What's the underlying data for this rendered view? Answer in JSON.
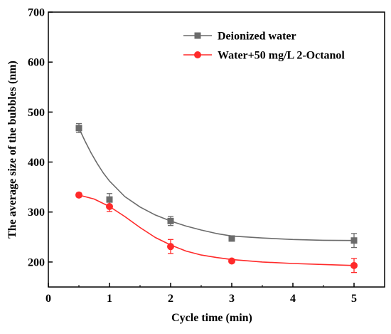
{
  "chart_data": {
    "type": "line",
    "xlabel": "Cycle time (min)",
    "ylabel": "The average size of the bubbles (nm)",
    "xlim": [
      0,
      5.5
    ],
    "ylim": [
      150,
      700
    ],
    "xticks": [
      0,
      1,
      2,
      3,
      4,
      5
    ],
    "yticks": [
      200,
      300,
      400,
      500,
      600,
      700
    ],
    "grid": false,
    "legend_position": "top-right",
    "series": [
      {
        "name": "Deionized water",
        "color": "#6b6b6b",
        "marker": "square",
        "x": [
          0.5,
          1,
          2,
          3,
          5
        ],
        "y": [
          468,
          325,
          282,
          247,
          243
        ],
        "error": [
          9,
          12,
          9,
          5,
          14
        ],
        "fit": [
          [
            0.5,
            468
          ],
          [
            0.6,
            442
          ],
          [
            0.7,
            418
          ],
          [
            0.8,
            397
          ],
          [
            0.9,
            378
          ],
          [
            1.0,
            362
          ],
          [
            1.25,
            331
          ],
          [
            1.5,
            310
          ],
          [
            1.75,
            294
          ],
          [
            2.0,
            282
          ],
          [
            2.25,
            272
          ],
          [
            2.5,
            264
          ],
          [
            2.75,
            257
          ],
          [
            3.0,
            252
          ],
          [
            3.5,
            248
          ],
          [
            4.0,
            245
          ],
          [
            4.5,
            243.5
          ],
          [
            5.0,
            243
          ]
        ]
      },
      {
        "name": "Water+50 mg/L 2-Octanol",
        "color": "#ff2a2a",
        "marker": "circle",
        "x": [
          0.5,
          1,
          2,
          3,
          5
        ],
        "y": [
          334,
          311,
          231,
          202,
          193
        ],
        "error": [
          4,
          10,
          14,
          3,
          14
        ],
        "fit": [
          [
            0.5,
            334
          ],
          [
            0.75,
            326
          ],
          [
            1.0,
            311
          ],
          [
            1.25,
            291
          ],
          [
            1.5,
            269
          ],
          [
            1.75,
            249
          ],
          [
            2.0,
            234
          ],
          [
            2.25,
            222
          ],
          [
            2.5,
            214
          ],
          [
            2.75,
            209
          ],
          [
            3.0,
            205
          ],
          [
            3.5,
            200
          ],
          [
            4.0,
            197
          ],
          [
            4.5,
            195
          ],
          [
            5.0,
            193
          ]
        ]
      }
    ]
  }
}
